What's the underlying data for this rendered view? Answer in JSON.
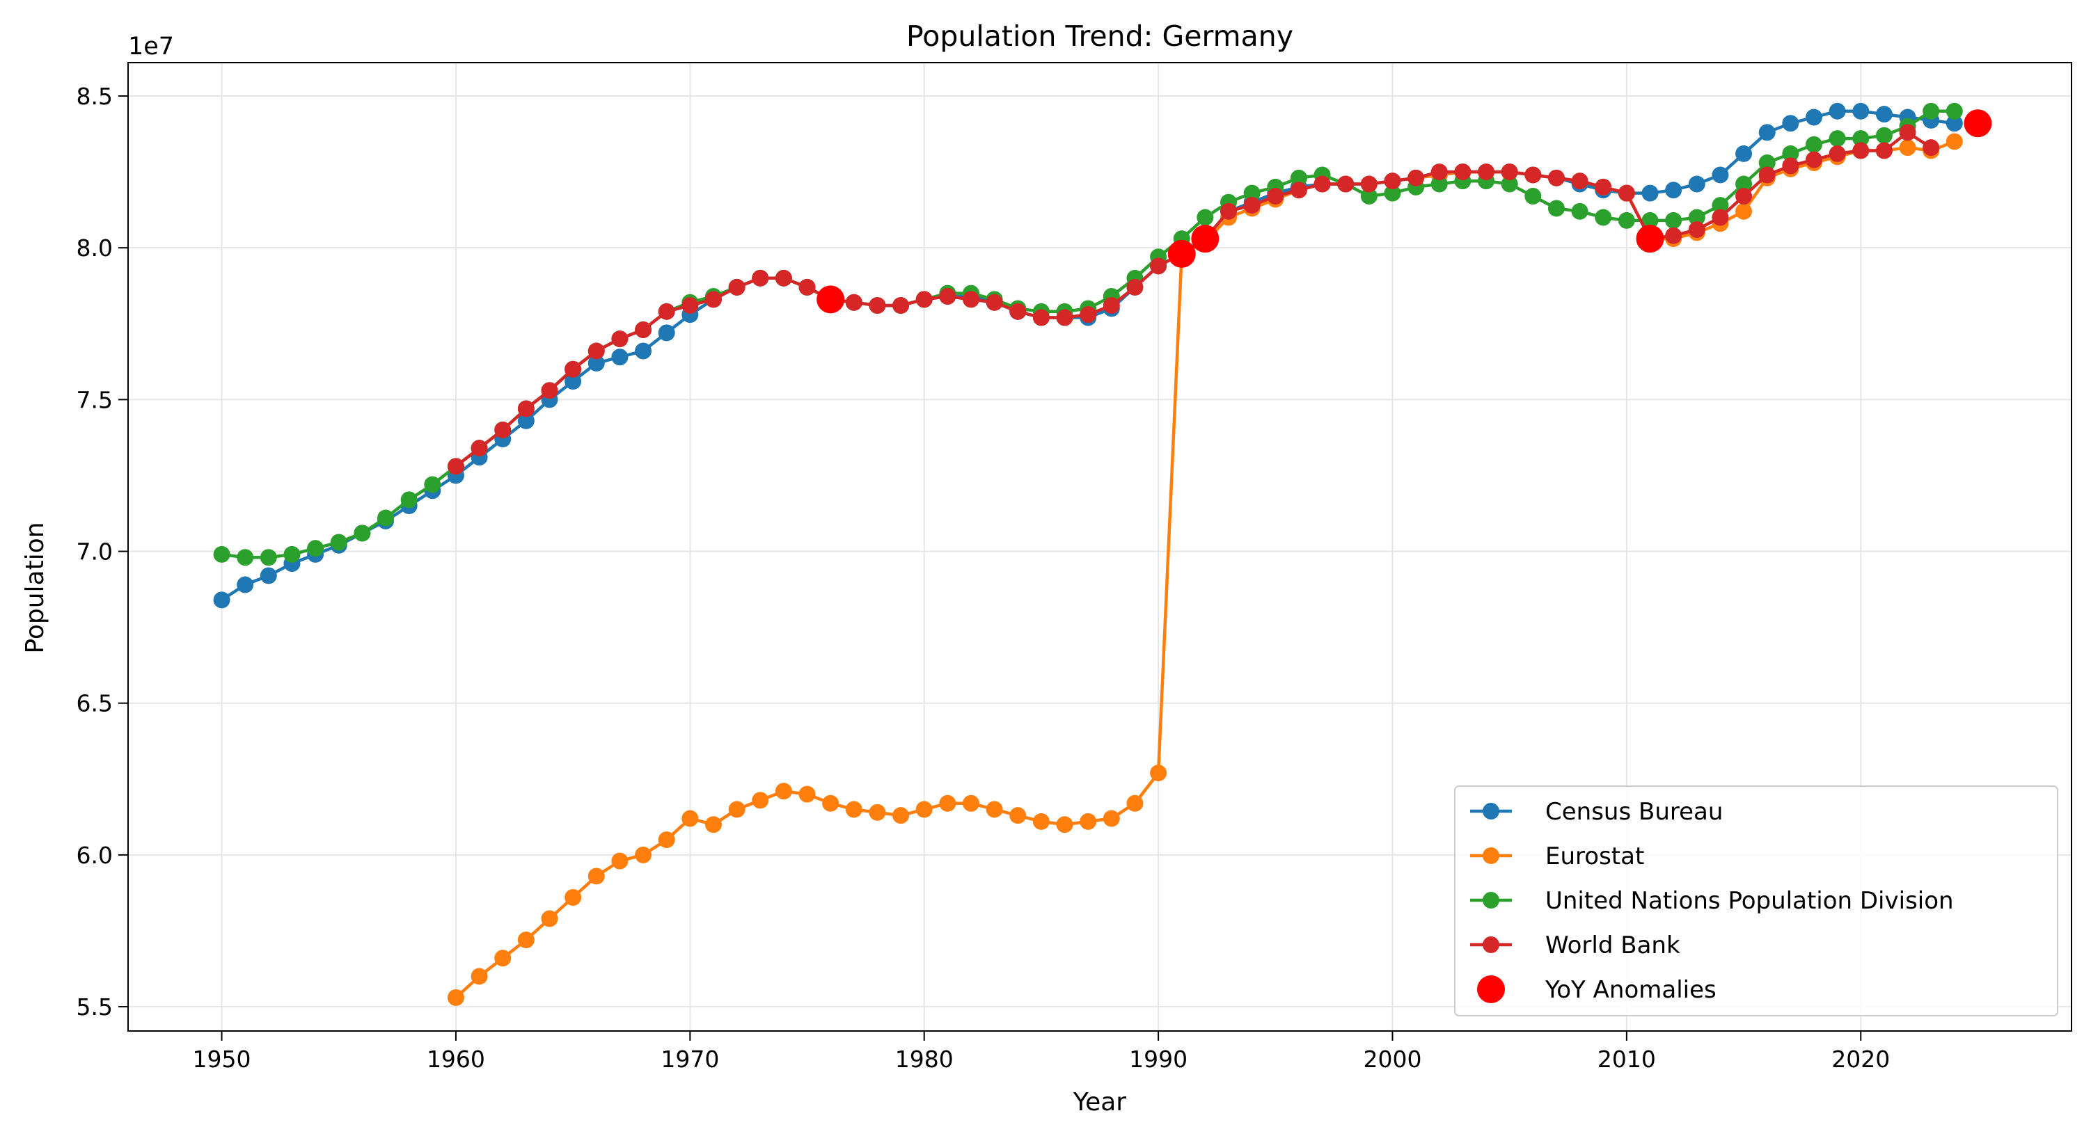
{
  "chart_data": {
    "type": "line",
    "title": "Population Trend: Germany",
    "xlabel": "Year",
    "ylabel": "Population",
    "offset_label": "1e7",
    "xlim": [
      1946,
      2029
    ],
    "ylim": [
      5.42,
      8.61
    ],
    "x_ticks": [
      1950,
      1960,
      1970,
      1980,
      1990,
      2000,
      2010,
      2020
    ],
    "y_ticks": [
      5.5,
      6.0,
      6.5,
      7.0,
      7.5,
      8.0,
      8.5
    ],
    "x_tick_labels": [
      "1950",
      "1960",
      "1970",
      "1980",
      "1990",
      "2000",
      "2010",
      "2020"
    ],
    "y_tick_labels": [
      "5.5",
      "6.0",
      "6.5",
      "7.0",
      "7.5",
      "8.0",
      "8.5"
    ],
    "grid": true,
    "legend_position": "bottom-right",
    "series": [
      {
        "name": "Census Bureau",
        "color": "#1f77b4",
        "x": [
          1950,
          1951,
          1952,
          1953,
          1954,
          1955,
          1956,
          1957,
          1958,
          1959,
          1960,
          1961,
          1962,
          1963,
          1964,
          1965,
          1966,
          1967,
          1968,
          1969,
          1970,
          1971,
          1972,
          1973,
          1974,
          1975,
          1976,
          1977,
          1978,
          1979,
          1980,
          1981,
          1982,
          1983,
          1984,
          1985,
          1986,
          1987,
          1988,
          1989,
          1990,
          1991,
          1992,
          1993,
          1994,
          1995,
          1996,
          1997,
          1998,
          1999,
          2000,
          2001,
          2002,
          2003,
          2004,
          2005,
          2006,
          2007,
          2008,
          2009,
          2010,
          2011,
          2012,
          2013,
          2014,
          2015,
          2016,
          2017,
          2018,
          2019,
          2020,
          2021,
          2022,
          2023,
          2024
        ],
        "y": [
          6.84,
          6.89,
          6.92,
          6.96,
          6.99,
          7.02,
          7.06,
          7.1,
          7.15,
          7.2,
          7.25,
          7.31,
          7.37,
          7.43,
          7.5,
          7.56,
          7.62,
          7.64,
          7.66,
          7.72,
          7.78,
          7.83,
          7.87,
          7.9,
          7.9,
          7.87,
          7.83,
          7.82,
          7.81,
          7.81,
          7.83,
          7.84,
          7.84,
          7.82,
          7.79,
          7.77,
          7.77,
          7.77,
          7.8,
          7.87,
          7.94,
          7.98,
          8.03,
          8.12,
          8.15,
          8.18,
          8.2,
          8.21,
          8.21,
          8.21,
          8.22,
          8.23,
          8.24,
          8.25,
          8.25,
          8.25,
          8.24,
          8.23,
          8.21,
          8.19,
          8.18,
          8.18,
          8.19,
          8.21,
          8.24,
          8.31,
          8.38,
          8.41,
          8.43,
          8.45,
          8.45,
          8.44,
          8.43,
          8.42,
          8.41
        ]
      },
      {
        "name": "Eurostat",
        "color": "#ff7f0e",
        "x": [
          1960,
          1961,
          1962,
          1963,
          1964,
          1965,
          1966,
          1967,
          1968,
          1969,
          1970,
          1971,
          1972,
          1973,
          1974,
          1975,
          1976,
          1977,
          1978,
          1979,
          1980,
          1981,
          1982,
          1983,
          1984,
          1985,
          1986,
          1987,
          1988,
          1989,
          1990,
          1991,
          1992,
          1993,
          1994,
          1995,
          1996,
          1997,
          1998,
          1999,
          2000,
          2001,
          2002,
          2003,
          2004,
          2005,
          2006,
          2007,
          2008,
          2009,
          2010,
          2011,
          2012,
          2013,
          2014,
          2015,
          2016,
          2017,
          2018,
          2019,
          2020,
          2021,
          2022,
          2023,
          2024
        ],
        "y": [
          5.53,
          5.6,
          5.66,
          5.72,
          5.79,
          5.86,
          5.93,
          5.98,
          6.0,
          6.05,
          6.12,
          6.1,
          6.15,
          6.18,
          6.21,
          6.2,
          6.17,
          6.15,
          6.14,
          6.13,
          6.15,
          6.17,
          6.17,
          6.15,
          6.13,
          6.11,
          6.1,
          6.11,
          6.12,
          6.17,
          6.27,
          7.98,
          8.02,
          8.1,
          8.13,
          8.16,
          8.19,
          8.21,
          8.21,
          8.21,
          8.22,
          8.23,
          8.24,
          8.25,
          8.25,
          8.25,
          8.24,
          8.23,
          8.22,
          8.2,
          8.18,
          8.03,
          8.03,
          8.05,
          8.08,
          8.12,
          8.23,
          8.26,
          8.28,
          8.3,
          8.32,
          8.32,
          8.33,
          8.32,
          8.35
        ]
      },
      {
        "name": "United Nations Population Division",
        "color": "#2ca02c",
        "x": [
          1950,
          1951,
          1952,
          1953,
          1954,
          1955,
          1956,
          1957,
          1958,
          1959,
          1960,
          1961,
          1962,
          1963,
          1964,
          1965,
          1966,
          1967,
          1968,
          1969,
          1970,
          1971,
          1972,
          1973,
          1974,
          1975,
          1976,
          1977,
          1978,
          1979,
          1980,
          1981,
          1982,
          1983,
          1984,
          1985,
          1986,
          1987,
          1988,
          1989,
          1990,
          1991,
          1992,
          1993,
          1994,
          1995,
          1996,
          1997,
          1998,
          1999,
          2000,
          2001,
          2002,
          2003,
          2004,
          2005,
          2006,
          2007,
          2008,
          2009,
          2010,
          2011,
          2012,
          2013,
          2014,
          2015,
          2016,
          2017,
          2018,
          2019,
          2020,
          2021,
          2022,
          2023,
          2024
        ],
        "y": [
          6.99,
          6.98,
          6.98,
          6.99,
          7.01,
          7.03,
          7.06,
          7.11,
          7.17,
          7.22,
          7.28,
          7.34,
          7.4,
          7.47,
          7.53,
          7.6,
          7.66,
          7.7,
          7.73,
          7.79,
          7.82,
          7.84,
          7.87,
          7.9,
          7.9,
          7.87,
          7.83,
          7.82,
          7.81,
          7.81,
          7.83,
          7.85,
          7.85,
          7.83,
          7.8,
          7.79,
          7.79,
          7.8,
          7.84,
          7.9,
          7.97,
          8.03,
          8.1,
          8.15,
          8.18,
          8.2,
          8.23,
          8.24,
          8.21,
          8.17,
          8.18,
          8.2,
          8.21,
          8.22,
          8.22,
          8.21,
          8.17,
          8.13,
          8.12,
          8.1,
          8.09,
          8.09,
          8.09,
          8.1,
          8.14,
          8.21,
          8.28,
          8.31,
          8.34,
          8.36,
          8.36,
          8.37,
          8.4,
          8.45,
          8.45
        ]
      },
      {
        "name": "World Bank",
        "color": "#d62728",
        "x": [
          1960,
          1961,
          1962,
          1963,
          1964,
          1965,
          1966,
          1967,
          1968,
          1969,
          1970,
          1971,
          1972,
          1973,
          1974,
          1975,
          1976,
          1977,
          1978,
          1979,
          1980,
          1981,
          1982,
          1983,
          1984,
          1985,
          1986,
          1987,
          1988,
          1989,
          1990,
          1991,
          1992,
          1993,
          1994,
          1995,
          1996,
          1997,
          1998,
          1999,
          2000,
          2001,
          2002,
          2003,
          2004,
          2005,
          2006,
          2007,
          2008,
          2009,
          2010,
          2011,
          2012,
          2013,
          2014,
          2015,
          2016,
          2017,
          2018,
          2019,
          2020,
          2021,
          2022,
          2023
        ],
        "y": [
          7.28,
          7.34,
          7.4,
          7.47,
          7.53,
          7.6,
          7.66,
          7.7,
          7.73,
          7.79,
          7.81,
          7.83,
          7.87,
          7.9,
          7.9,
          7.87,
          7.83,
          7.82,
          7.81,
          7.81,
          7.83,
          7.84,
          7.83,
          7.82,
          7.79,
          7.77,
          7.77,
          7.78,
          7.81,
          7.87,
          7.94,
          7.98,
          8.03,
          8.12,
          8.14,
          8.17,
          8.19,
          8.21,
          8.21,
          8.21,
          8.22,
          8.23,
          8.25,
          8.25,
          8.25,
          8.25,
          8.24,
          8.23,
          8.22,
          8.2,
          8.18,
          8.03,
          8.04,
          8.06,
          8.1,
          8.17,
          8.24,
          8.27,
          8.29,
          8.31,
          8.32,
          8.32,
          8.38,
          8.33
        ]
      }
    ],
    "anomalies": {
      "name": "YoY Anomalies",
      "color": "#ff0000",
      "x": [
        1976,
        1991,
        1992,
        2011,
        2025
      ],
      "y": [
        7.83,
        7.98,
        8.03,
        8.03,
        8.41
      ]
    }
  }
}
